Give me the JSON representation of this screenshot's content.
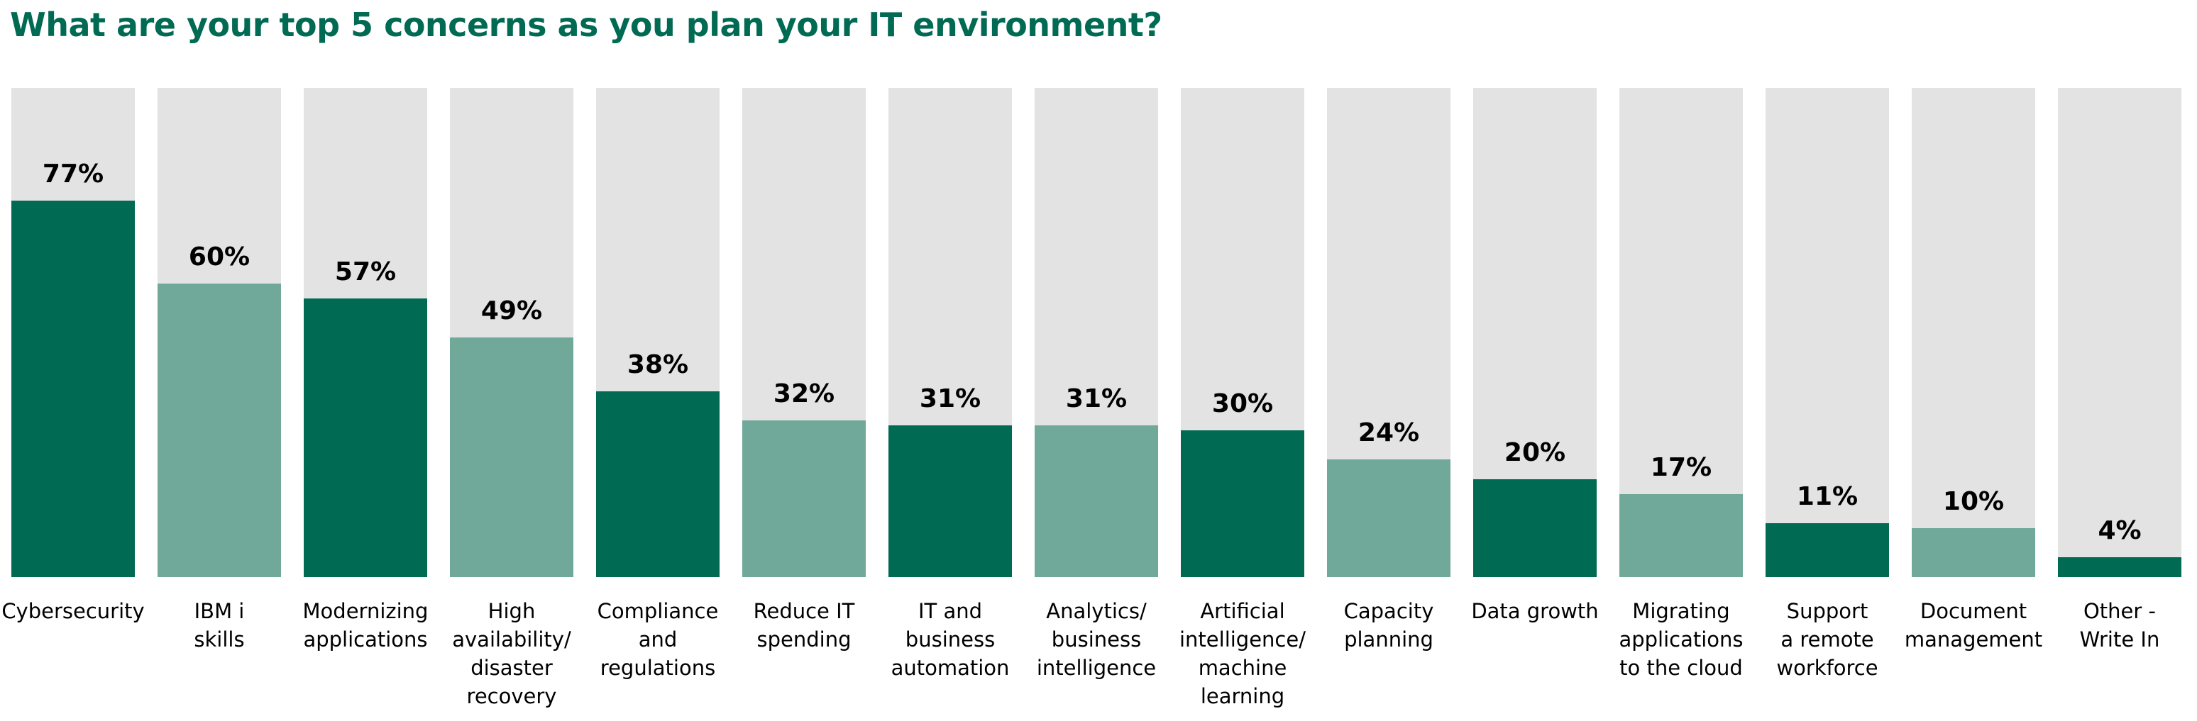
{
  "chart_data": {
    "type": "bar",
    "title": "What are your top 5 concerns as you plan your IT environment?",
    "xlabel": "",
    "ylabel": "",
    "ylim": [
      0,
      100
    ],
    "grid": false,
    "value_format": "percent",
    "categories": [
      "Cybersecurity",
      "IBM i skills",
      "Modernizing applications",
      "High availability/ disaster recovery",
      "Compliance and regulations",
      "Reduce IT spending",
      "IT and business automation",
      "Analytics/ business intelligence",
      "Artificial intelligence/ machine learning",
      "Capacity planning",
      "Data growth",
      "Migrating applications to the cloud",
      "Support a remote workforce",
      "Document management",
      "Other - Write In"
    ],
    "category_lines": [
      "Cybersecurity",
      "IBM i\nskills",
      "Modernizing\napplications",
      "High\navailability/\ndisaster\nrecovery",
      "Compliance\nand\nregulations",
      "Reduce IT\nspending",
      "IT and\nbusiness\nautomation",
      "Analytics/\nbusiness\nintelligence",
      "Artificial\nintelligence/\nmachine\nlearning",
      "Capacity\nplanning",
      "Data growth",
      "Migrating\napplications\nto the cloud",
      "Support\na remote\nworkforce",
      "Document\nmanagement",
      "Other -\nWrite In"
    ],
    "values": [
      77,
      60,
      57,
      49,
      38,
      32,
      31,
      31,
      30,
      24,
      20,
      17,
      11,
      10,
      4
    ],
    "value_labels": [
      "77%",
      "60%",
      "57%",
      "49%",
      "38%",
      "32%",
      "31%",
      "31%",
      "30%",
      "24%",
      "20%",
      "17%",
      "11%",
      "10%",
      "4%"
    ],
    "colors": {
      "dark": "#006a53",
      "light": "#70a89a",
      "track": "#e3e3e3",
      "title": "#006a53"
    }
  }
}
